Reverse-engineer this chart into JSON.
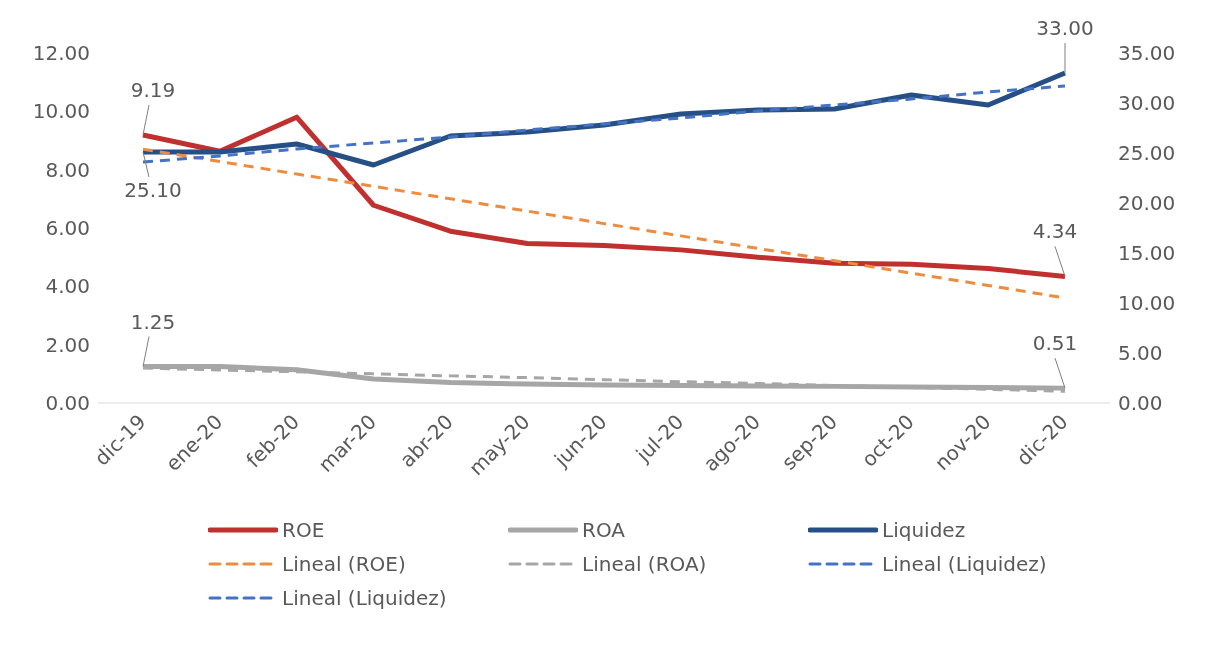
{
  "chart_data": {
    "type": "line",
    "categories": [
      "dic-19",
      "ene-20",
      "feb-20",
      "mar-20",
      "abr-20",
      "may-20",
      "jun-20",
      "jul-20",
      "ago-20",
      "sep-20",
      "oct-20",
      "nov-20",
      "dic-20"
    ],
    "series": [
      {
        "name": "ROE",
        "color": "#c0302e",
        "line_style": "solid",
        "values": [
          9.19,
          8.63,
          9.8,
          6.78,
          5.89,
          5.47,
          5.4,
          5.25,
          5.0,
          4.79,
          4.76,
          4.61,
          4.34
        ],
        "value_labels": [
          "9.19",
          null,
          null,
          null,
          null,
          null,
          null,
          null,
          null,
          null,
          null,
          null,
          "4.34"
        ]
      },
      {
        "name": "ROA",
        "color": "#a6a6a6",
        "line_style": "solid",
        "values": [
          1.25,
          1.25,
          1.14,
          0.82,
          0.7,
          0.65,
          0.62,
          0.6,
          0.58,
          0.57,
          0.55,
          0.53,
          0.51
        ],
        "value_labels": [
          "1.25",
          null,
          null,
          null,
          null,
          null,
          null,
          null,
          null,
          null,
          null,
          null,
          "0.51"
        ]
      },
      {
        "name": "Liquidez",
        "color": "#264f86",
        "line_style": "solid",
        "axis": "y2",
        "values": [
          25.1,
          25.1,
          25.9,
          23.8,
          26.7,
          27.1,
          27.8,
          28.9,
          29.3,
          29.4,
          30.8,
          29.8,
          33.0
        ],
        "value_labels": [
          "25.10",
          null,
          null,
          null,
          null,
          null,
          null,
          null,
          null,
          null,
          null,
          null,
          "33.00"
        ]
      },
      {
        "name": "Lineal (ROE)",
        "color": "#ed8b3e",
        "line_style": "dashed",
        "values": [
          8.7,
          8.28,
          7.85,
          7.43,
          7.0,
          6.58,
          6.15,
          5.73,
          5.3,
          4.88,
          4.45,
          4.03,
          3.6
        ]
      },
      {
        "name": "Lineal (ROA)",
        "color": "#a6a6a6",
        "line_style": "dashed",
        "values": [
          1.2,
          1.13,
          1.07,
          1.0,
          0.93,
          0.87,
          0.8,
          0.73,
          0.67,
          0.6,
          0.53,
          0.47,
          0.4
        ]
      },
      {
        "name": "Lineal (Liquidez)",
        "color": "#4472c4",
        "line_style": "dashed",
        "axis": "y2",
        "values": [
          24.1,
          24.7,
          25.4,
          26.0,
          26.6,
          27.3,
          27.9,
          28.5,
          29.2,
          29.8,
          30.4,
          31.1,
          31.7
        ]
      },
      {
        "name": "Lineal (Liquidez)",
        "color": "#4472c4",
        "line_style": "dashed",
        "axis": "y2",
        "values": [
          null,
          null,
          null,
          null,
          null,
          null,
          null,
          null,
          null,
          null,
          null,
          null,
          null
        ]
      }
    ],
    "ylim": [
      0,
      12
    ],
    "yticks": [
      {
        "value": 0,
        "label": "0.00"
      },
      {
        "value": 2,
        "label": "2.00"
      },
      {
        "value": 4,
        "label": "4.00"
      },
      {
        "value": 6,
        "label": "6.00"
      },
      {
        "value": 8,
        "label": "8.00"
      },
      {
        "value": 10,
        "label": "10.00"
      },
      {
        "value": 12,
        "label": "12.00"
      }
    ],
    "y2lim": [
      0,
      35
    ],
    "y2ticks": [
      {
        "value": 0,
        "label": "0.00"
      },
      {
        "value": 5,
        "label": "5.00"
      },
      {
        "value": 10,
        "label": "10.00"
      },
      {
        "value": 15,
        "label": "15.00"
      },
      {
        "value": 20,
        "label": "20.00"
      },
      {
        "value": 25,
        "label": "25.00"
      },
      {
        "value": 30,
        "label": "30.00"
      },
      {
        "value": 35,
        "label": "35.00"
      }
    ],
    "grid": false,
    "legend": "bottom",
    "marker": "none"
  }
}
